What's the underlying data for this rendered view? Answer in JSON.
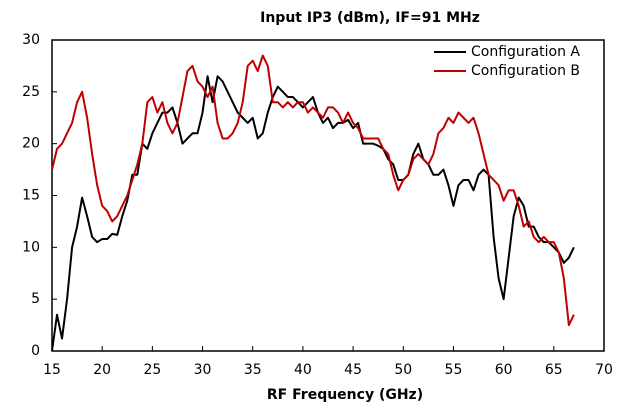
{
  "chart_data": {
    "type": "line",
    "title": "Input IP3 (dBm), IF=91 MHz",
    "x_label": "RF Frequency (GHz)",
    "x": [
      15,
      15.5,
      16,
      16.5,
      17,
      17.5,
      18,
      18.5,
      19,
      19.5,
      20,
      20.5,
      21,
      21.5,
      22,
      22.5,
      23,
      23.5,
      24,
      24.5,
      25,
      25.5,
      26,
      26.5,
      27,
      27.5,
      28,
      28.5,
      29,
      29.5,
      30,
      30.5,
      31,
      31.5,
      32,
      32.5,
      33,
      33.5,
      34,
      34.5,
      35,
      35.5,
      36,
      36.5,
      37,
      37.5,
      38,
      38.5,
      39,
      39.5,
      40,
      40.5,
      41,
      41.5,
      42,
      42.5,
      43,
      43.5,
      44,
      44.5,
      45,
      45.5,
      46,
      46.5,
      47,
      47.5,
      48,
      48.5,
      49,
      49.5,
      50,
      50.5,
      51,
      51.5,
      52,
      52.5,
      53,
      53.5,
      54,
      54.5,
      55,
      55.5,
      56,
      56.5,
      57,
      57.5,
      58,
      58.5,
      59,
      59.5,
      60,
      60.5,
      61,
      61.5,
      62,
      62.5,
      63,
      63.5,
      64,
      64.5,
      65,
      65.5,
      66,
      66.5,
      67
    ],
    "series": [
      {
        "name": "Configuration A",
        "color": "#000000",
        "values": [
          0,
          3.5,
          1.2,
          5,
          10,
          12,
          14.8,
          13,
          11,
          10.5,
          10.8,
          10.8,
          11.3,
          11.2,
          13,
          14.5,
          17,
          17,
          20,
          19.5,
          21,
          22,
          23,
          23,
          23.5,
          22,
          20,
          20.5,
          21,
          21,
          23,
          26.5,
          24,
          26.5,
          26,
          25,
          24,
          23,
          22.5,
          22,
          22.5,
          20.5,
          21,
          23,
          24.5,
          25.5,
          25,
          24.5,
          24.5,
          24,
          23.5,
          24,
          24.5,
          23,
          22,
          22.5,
          21.5,
          22,
          22,
          22.3,
          21.5,
          22,
          20,
          20,
          20,
          19.8,
          19.5,
          18.5,
          18,
          16.5,
          16.5,
          17,
          19,
          20,
          18.5,
          18,
          17,
          17,
          17.5,
          16,
          14,
          16,
          16.5,
          16.5,
          15.5,
          17,
          17.5,
          17,
          11,
          7,
          5,
          9,
          13,
          14.8,
          14,
          12,
          12,
          11,
          10.5,
          10.5,
          10,
          9.5,
          8.5,
          9,
          10
        ]
      },
      {
        "name": "Configuration B",
        "color": "#c00000",
        "values": [
          17.5,
          19.5,
          20,
          21,
          22,
          24,
          25,
          22.5,
          19,
          16,
          14,
          13.5,
          12.5,
          13,
          14,
          15,
          16.5,
          18,
          20,
          24,
          24.5,
          23,
          24,
          22,
          21,
          22,
          24.5,
          27,
          27.5,
          26,
          25.5,
          24.5,
          25.5,
          22,
          20.5,
          20.5,
          21,
          22,
          24,
          27.5,
          28,
          27,
          28.5,
          27.5,
          24,
          24,
          23.5,
          24,
          23.5,
          24,
          24,
          23,
          23.5,
          23,
          22.5,
          23.5,
          23.5,
          23,
          22,
          23,
          22,
          21.5,
          20.5,
          20.5,
          20.5,
          20.5,
          19.5,
          19,
          17,
          15.5,
          16.5,
          17,
          18.5,
          19,
          18.5,
          18,
          19,
          21,
          21.5,
          22.5,
          22,
          23,
          22.5,
          22,
          22.5,
          21,
          19,
          17,
          16.5,
          16,
          14.5,
          15.5,
          15.5,
          14,
          12,
          12.5,
          11,
          10.5,
          11,
          10.5,
          10.5,
          9.5,
          7,
          2.5,
          3.5
        ]
      }
    ],
    "xlim": [
      15,
      70
    ],
    "xticks": [
      15,
      20,
      25,
      30,
      35,
      40,
      45,
      50,
      55,
      60,
      65,
      70
    ],
    "ylim": [
      0,
      30
    ],
    "yticks": [
      0,
      5,
      10,
      15,
      20,
      25,
      30
    ],
    "legend": "upper right",
    "grid": false
  }
}
